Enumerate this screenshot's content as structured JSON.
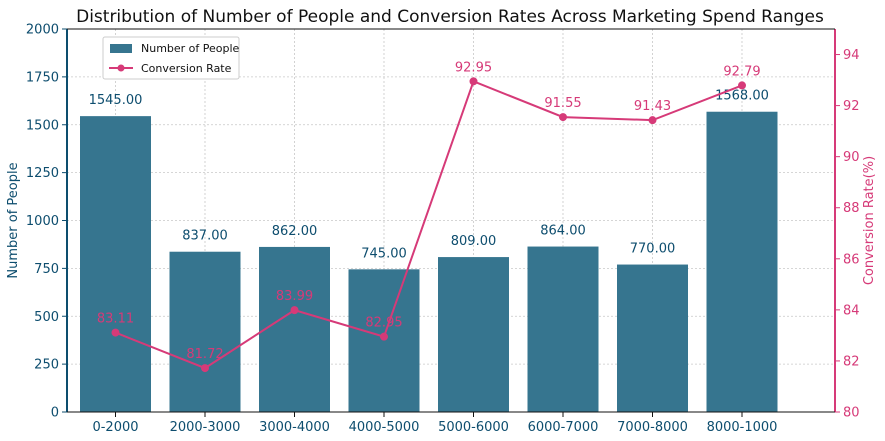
{
  "chart_data": {
    "type": "bar+line",
    "title": "Distribution of Number of People and Conversion Rates Across Marketing Spend Ranges",
    "categories": [
      "0-2000",
      "2000-3000",
      "3000-4000",
      "4000-5000",
      "5000-6000",
      "6000-7000",
      "7000-8000",
      "8000-1000"
    ],
    "bars": {
      "name": "Number of People",
      "values": [
        1545,
        837,
        862,
        745,
        809,
        864,
        770,
        1568
      ],
      "labels": [
        "1545.00",
        "837.00",
        "862.00",
        "745.00",
        "809.00",
        "864.00",
        "770.00",
        "1568.00"
      ],
      "color": "#36758f"
    },
    "line": {
      "name": "Conversion Rate",
      "values": [
        83.11,
        81.72,
        83.99,
        82.95,
        92.95,
        91.55,
        91.43,
        92.79
      ],
      "labels": [
        "83.11",
        "81.72",
        "83.99",
        "82.95",
        "92.95",
        "91.55",
        "91.43",
        "92.79"
      ],
      "color": "#d63a78"
    },
    "y_left": {
      "label": "Number of People",
      "lim": [
        0,
        2000
      ],
      "ticks": [
        0,
        250,
        500,
        750,
        1000,
        1250,
        1500,
        1750,
        2000
      ],
      "tick_labels": [
        "0",
        "250",
        "500",
        "750",
        "1000",
        "1250",
        "1500",
        "1750",
        "2000"
      ],
      "color": "#0d4d6e"
    },
    "y_right": {
      "label": "Conversion Rate(%)",
      "lim": [
        80,
        95
      ],
      "ticks": [
        80,
        82,
        84,
        86,
        88,
        90,
        92,
        94
      ],
      "tick_labels": [
        "80",
        "82",
        "84",
        "86",
        "88",
        "90",
        "92",
        "94"
      ],
      "color": "#d63a78"
    },
    "grid": true,
    "legend_position": "top-left"
  }
}
